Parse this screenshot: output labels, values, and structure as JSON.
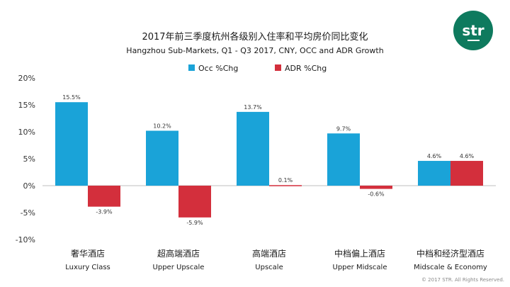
{
  "brand": {
    "logo_text": "str",
    "logo_color": "#0e7a5e"
  },
  "copyright": "© 2017 STR. All Rights Reserved.",
  "chart_data": {
    "type": "bar",
    "title": "2017年前三季度杭州各级别入住率和平均房价同比变化",
    "subtitle": "Hangzhou Sub-Markets, Q1 - Q3 2017, CNY, OCC and ADR Growth",
    "categories": [
      {
        "cn": "奢华酒店",
        "en": "Luxury Class"
      },
      {
        "cn": "超高端酒店",
        "en": "Upper Upscale"
      },
      {
        "cn": "高端酒店",
        "en": "Upscale"
      },
      {
        "cn": "中档偏上酒店",
        "en": "Upper Midscale"
      },
      {
        "cn": "中档和经济型酒店",
        "en": "Midscale & Economy"
      }
    ],
    "series": [
      {
        "name": "Occ %Chg",
        "color": "#1aa3d8",
        "values": [
          15.5,
          10.2,
          13.7,
          9.7,
          4.6
        ],
        "labels": [
          "15.5%",
          "10.2%",
          "13.7%",
          "9.7%",
          "4.6%"
        ]
      },
      {
        "name": "ADR %Chg",
        "color": "#d32f3c",
        "values": [
          -3.9,
          -5.9,
          0.1,
          -0.6,
          4.6
        ],
        "labels": [
          "-3.9%",
          "-5.9%",
          "0.1%",
          "-0.6%",
          "4.6%"
        ]
      }
    ],
    "ylim": [
      -10,
      20
    ],
    "yticks": [
      20,
      15,
      10,
      5,
      0,
      -5,
      -10
    ],
    "ytick_labels": [
      "20%",
      "15%",
      "10%",
      "5%",
      "0%",
      "-5%",
      "-10%"
    ],
    "legend_position": "top-center",
    "grid": false
  }
}
